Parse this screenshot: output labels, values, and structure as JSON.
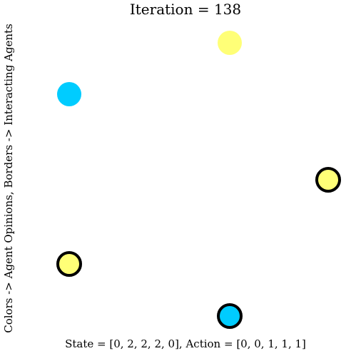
{
  "title": "Iteration = 138",
  "ylabel": "Colors -> Agent Opinions, Borders -> Interacting Agents",
  "xlabel": "State = [0, 2, 2, 2, 0], Action = [0, 0, 1, 1, 1]",
  "colors": {
    "opinion_0": "#00ccff",
    "opinion_2": "#ffff77",
    "border": "#000000"
  },
  "agents": [
    {
      "id": "agent-0",
      "opinion": 0,
      "interacting": false
    },
    {
      "id": "agent-1",
      "opinion": 2,
      "interacting": false
    },
    {
      "id": "agent-2",
      "opinion": 2,
      "interacting": true
    },
    {
      "id": "agent-3",
      "opinion": 2,
      "interacting": true
    },
    {
      "id": "agent-4",
      "opinion": 0,
      "interacting": true
    }
  ]
}
